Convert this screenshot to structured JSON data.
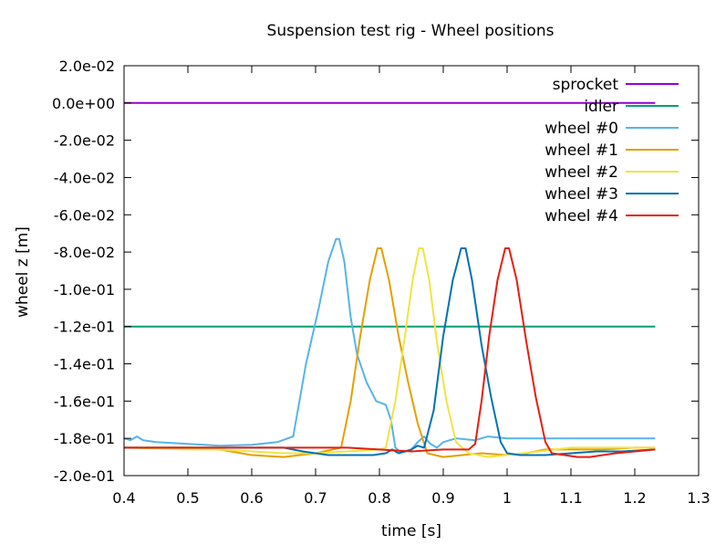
{
  "chart_data": {
    "type": "line",
    "title": "Suspension test rig - Wheel positions",
    "xlabel": "time [s]",
    "ylabel": "wheel z [m]",
    "xlim": [
      0.4,
      1.3
    ],
    "ylim": [
      -0.2,
      0.02
    ],
    "x_ticks": [
      0.4,
      0.5,
      0.6,
      0.7,
      0.8,
      0.9,
      1.0,
      1.1,
      1.2,
      1.3
    ],
    "x_tick_labels": [
      "0.4",
      "0.5",
      "0.6",
      "0.7",
      "0.8",
      "0.9",
      "1",
      "1.1",
      "1.2",
      "1.3"
    ],
    "y_ticks": [
      0.02,
      0.0,
      -0.02,
      -0.04,
      -0.06,
      -0.08,
      -0.1,
      -0.12,
      -0.14,
      -0.16,
      -0.18,
      -0.2
    ],
    "y_tick_labels": [
      "2.0e-02",
      "0.0e+00",
      "-2.0e-02",
      "-4.0e-02",
      "-6.0e-02",
      "-8.0e-02",
      "-1.0e-01",
      "-1.2e-01",
      "-1.4e-01",
      "-1.6e-01",
      "-1.8e-01",
      "-2.0e-01"
    ],
    "grid": false,
    "legend_position": "top-right",
    "series": [
      {
        "name": "sprocket",
        "color": "#9400d3",
        "points": [
          [
            0.4,
            0.0
          ],
          [
            1.232,
            0.0
          ]
        ]
      },
      {
        "name": "idler",
        "color": "#009e73",
        "points": [
          [
            0.4,
            -0.12
          ],
          [
            1.232,
            -0.12
          ]
        ]
      },
      {
        "name": "wheel #0",
        "color": "#56b4e9",
        "points": [
          [
            0.4,
            -0.18
          ],
          [
            0.41,
            -0.181
          ],
          [
            0.42,
            -0.179
          ],
          [
            0.43,
            -0.181
          ],
          [
            0.45,
            -0.182
          ],
          [
            0.5,
            -0.183
          ],
          [
            0.55,
            -0.184
          ],
          [
            0.6,
            -0.1835
          ],
          [
            0.64,
            -0.182
          ],
          [
            0.665,
            -0.179
          ],
          [
            0.685,
            -0.14
          ],
          [
            0.705,
            -0.11
          ],
          [
            0.72,
            -0.085
          ],
          [
            0.732,
            -0.073
          ],
          [
            0.737,
            -0.073
          ],
          [
            0.745,
            -0.085
          ],
          [
            0.755,
            -0.115
          ],
          [
            0.765,
            -0.135
          ],
          [
            0.78,
            -0.15
          ],
          [
            0.795,
            -0.16
          ],
          [
            0.81,
            -0.162
          ],
          [
            0.818,
            -0.17
          ],
          [
            0.825,
            -0.185
          ],
          [
            0.832,
            -0.187
          ],
          [
            0.84,
            -0.187
          ],
          [
            0.85,
            -0.186
          ],
          [
            0.86,
            -0.182
          ],
          [
            0.87,
            -0.179
          ],
          [
            0.88,
            -0.183
          ],
          [
            0.89,
            -0.185
          ],
          [
            0.9,
            -0.182
          ],
          [
            0.92,
            -0.18
          ],
          [
            0.95,
            -0.181
          ],
          [
            0.97,
            -0.179
          ],
          [
            1.0,
            -0.18
          ],
          [
            1.1,
            -0.18
          ],
          [
            1.232,
            -0.18
          ]
        ]
      },
      {
        "name": "wheel #1",
        "color": "#e69f00",
        "points": [
          [
            0.4,
            -0.185
          ],
          [
            0.5,
            -0.185
          ],
          [
            0.55,
            -0.186
          ],
          [
            0.6,
            -0.189
          ],
          [
            0.65,
            -0.19
          ],
          [
            0.7,
            -0.188
          ],
          [
            0.74,
            -0.185
          ],
          [
            0.755,
            -0.16
          ],
          [
            0.77,
            -0.125
          ],
          [
            0.785,
            -0.095
          ],
          [
            0.797,
            -0.078
          ],
          [
            0.803,
            -0.078
          ],
          [
            0.815,
            -0.095
          ],
          [
            0.83,
            -0.125
          ],
          [
            0.845,
            -0.15
          ],
          [
            0.86,
            -0.172
          ],
          [
            0.875,
            -0.188
          ],
          [
            0.9,
            -0.19
          ],
          [
            0.93,
            -0.189
          ],
          [
            0.96,
            -0.188
          ],
          [
            1.0,
            -0.189
          ],
          [
            1.03,
            -0.188
          ],
          [
            1.06,
            -0.186
          ],
          [
            1.1,
            -0.186
          ],
          [
            1.15,
            -0.186
          ],
          [
            1.2,
            -0.185
          ],
          [
            1.232,
            -0.185
          ]
        ]
      },
      {
        "name": "wheel #2",
        "color": "#f0e442",
        "points": [
          [
            0.4,
            -0.185
          ],
          [
            0.5,
            -0.186
          ],
          [
            0.55,
            -0.186
          ],
          [
            0.6,
            -0.187
          ],
          [
            0.65,
            -0.188
          ],
          [
            0.7,
            -0.188
          ],
          [
            0.75,
            -0.187
          ],
          [
            0.8,
            -0.186
          ],
          [
            0.81,
            -0.185
          ],
          [
            0.825,
            -0.16
          ],
          [
            0.84,
            -0.125
          ],
          [
            0.852,
            -0.095
          ],
          [
            0.862,
            -0.078
          ],
          [
            0.868,
            -0.078
          ],
          [
            0.878,
            -0.095
          ],
          [
            0.89,
            -0.128
          ],
          [
            0.905,
            -0.16
          ],
          [
            0.92,
            -0.182
          ],
          [
            0.94,
            -0.188
          ],
          [
            0.97,
            -0.19
          ],
          [
            1.0,
            -0.189
          ],
          [
            1.05,
            -0.187
          ],
          [
            1.1,
            -0.185
          ],
          [
            1.15,
            -0.185
          ],
          [
            1.232,
            -0.185
          ]
        ]
      },
      {
        "name": "wheel #3",
        "color": "#0072b2",
        "points": [
          [
            0.4,
            -0.185
          ],
          [
            0.5,
            -0.185
          ],
          [
            0.55,
            -0.185
          ],
          [
            0.6,
            -0.185
          ],
          [
            0.65,
            -0.185
          ],
          [
            0.68,
            -0.187
          ],
          [
            0.72,
            -0.189
          ],
          [
            0.76,
            -0.189
          ],
          [
            0.79,
            -0.189
          ],
          [
            0.81,
            -0.188
          ],
          [
            0.82,
            -0.186
          ],
          [
            0.83,
            -0.188
          ],
          [
            0.84,
            -0.187
          ],
          [
            0.85,
            -0.186
          ],
          [
            0.86,
            -0.184
          ],
          [
            0.87,
            -0.185
          ],
          [
            0.885,
            -0.165
          ],
          [
            0.9,
            -0.125
          ],
          [
            0.915,
            -0.095
          ],
          [
            0.928,
            -0.078
          ],
          [
            0.935,
            -0.078
          ],
          [
            0.945,
            -0.095
          ],
          [
            0.96,
            -0.13
          ],
          [
            0.975,
            -0.158
          ],
          [
            0.99,
            -0.182
          ],
          [
            1.0,
            -0.188
          ],
          [
            1.02,
            -0.189
          ],
          [
            1.06,
            -0.189
          ],
          [
            1.1,
            -0.188
          ],
          [
            1.14,
            -0.187
          ],
          [
            1.18,
            -0.187
          ],
          [
            1.232,
            -0.186
          ]
        ]
      },
      {
        "name": "wheel #4",
        "color": "#e51e10",
        "points": [
          [
            0.4,
            -0.185
          ],
          [
            0.45,
            -0.185
          ],
          [
            0.5,
            -0.185
          ],
          [
            0.55,
            -0.185
          ],
          [
            0.6,
            -0.185
          ],
          [
            0.65,
            -0.185
          ],
          [
            0.7,
            -0.185
          ],
          [
            0.75,
            -0.185
          ],
          [
            0.8,
            -0.186
          ],
          [
            0.85,
            -0.187
          ],
          [
            0.9,
            -0.186
          ],
          [
            0.94,
            -0.186
          ],
          [
            0.95,
            -0.183
          ],
          [
            0.96,
            -0.16
          ],
          [
            0.972,
            -0.125
          ],
          [
            0.985,
            -0.095
          ],
          [
            0.997,
            -0.078
          ],
          [
            1.003,
            -0.078
          ],
          [
            1.015,
            -0.095
          ],
          [
            1.03,
            -0.128
          ],
          [
            1.045,
            -0.158
          ],
          [
            1.06,
            -0.182
          ],
          [
            1.07,
            -0.188
          ],
          [
            1.09,
            -0.189
          ],
          [
            1.11,
            -0.19
          ],
          [
            1.13,
            -0.19
          ],
          [
            1.15,
            -0.189
          ],
          [
            1.17,
            -0.188
          ],
          [
            1.2,
            -0.187
          ],
          [
            1.232,
            -0.186
          ]
        ]
      }
    ]
  }
}
